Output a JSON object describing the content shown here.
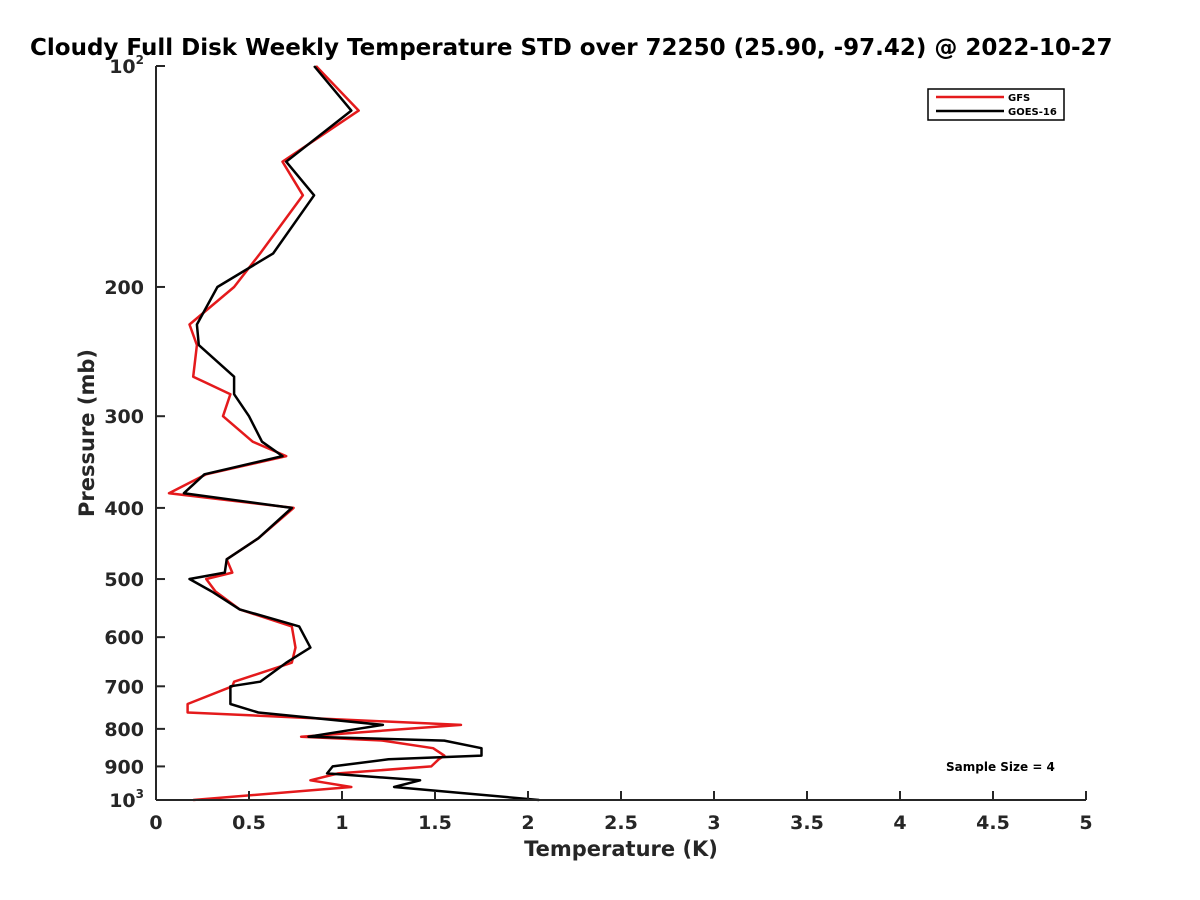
{
  "chart_data": {
    "type": "line",
    "title": "Cloudy Full Disk Weekly Temperature STD over 72250 (25.90, -97.42) @ 2022-10-27",
    "xlabel": "Temperature (K)",
    "ylabel": "Pressure (mb)",
    "xlim": [
      0,
      5
    ],
    "ylim": [
      100,
      1000
    ],
    "yscale": "log",
    "y_reversed": true,
    "grid": false,
    "legend_position": "top-right",
    "x_ticks": [
      "0",
      "0.5",
      "1",
      "1.5",
      "2",
      "2.5",
      "3",
      "3.5",
      "4",
      "4.5",
      "5"
    ],
    "y_ticks": [
      {
        "value": 100,
        "base": "10",
        "exp": "2"
      },
      {
        "value": 200,
        "label": "200"
      },
      {
        "value": 300,
        "label": "300"
      },
      {
        "value": 400,
        "label": "400"
      },
      {
        "value": 500,
        "label": "500"
      },
      {
        "value": 600,
        "label": "600"
      },
      {
        "value": 700,
        "label": "700"
      },
      {
        "value": 800,
        "label": "800"
      },
      {
        "value": 900,
        "label": "900"
      },
      {
        "value": 1000,
        "base": "10",
        "exp": "3"
      }
    ],
    "annotation": "Sample Size = 4",
    "series": [
      {
        "name": "GFS",
        "color": "#e41a1c",
        "points": [
          [
            0.86,
            100
          ],
          [
            1.09,
            115
          ],
          [
            0.68,
            135
          ],
          [
            0.79,
            150
          ],
          [
            0.56,
            180
          ],
          [
            0.42,
            200
          ],
          [
            0.18,
            225
          ],
          [
            0.22,
            240
          ],
          [
            0.2,
            265
          ],
          [
            0.4,
            280
          ],
          [
            0.36,
            300
          ],
          [
            0.52,
            325
          ],
          [
            0.7,
            340
          ],
          [
            0.27,
            360
          ],
          [
            0.07,
            382
          ],
          [
            0.74,
            400
          ],
          [
            0.55,
            440
          ],
          [
            0.38,
            470
          ],
          [
            0.41,
            490
          ],
          [
            0.27,
            500
          ],
          [
            0.32,
            520
          ],
          [
            0.45,
            550
          ],
          [
            0.73,
            580
          ],
          [
            0.75,
            620
          ],
          [
            0.73,
            650
          ],
          [
            0.42,
            690
          ],
          [
            0.41,
            700
          ],
          [
            0.17,
            740
          ],
          [
            0.17,
            760
          ],
          [
            1.64,
            790
          ],
          [
            0.78,
            820
          ],
          [
            1.22,
            830
          ],
          [
            1.49,
            850
          ],
          [
            1.55,
            870
          ],
          [
            1.52,
            880
          ],
          [
            1.48,
            900
          ],
          [
            0.98,
            920
          ],
          [
            0.83,
            940
          ],
          [
            1.05,
            960
          ],
          [
            0.2,
            1000
          ]
        ]
      },
      {
        "name": "GOES-16",
        "color": "#000000",
        "points": [
          [
            0.85,
            100
          ],
          [
            1.05,
            115
          ],
          [
            0.7,
            135
          ],
          [
            0.85,
            150
          ],
          [
            0.63,
            180
          ],
          [
            0.33,
            200
          ],
          [
            0.22,
            225
          ],
          [
            0.23,
            240
          ],
          [
            0.42,
            265
          ],
          [
            0.42,
            280
          ],
          [
            0.5,
            300
          ],
          [
            0.57,
            325
          ],
          [
            0.68,
            340
          ],
          [
            0.26,
            360
          ],
          [
            0.15,
            382
          ],
          [
            0.73,
            400
          ],
          [
            0.55,
            440
          ],
          [
            0.38,
            470
          ],
          [
            0.37,
            490
          ],
          [
            0.18,
            500
          ],
          [
            0.3,
            520
          ],
          [
            0.45,
            550
          ],
          [
            0.77,
            580
          ],
          [
            0.83,
            620
          ],
          [
            0.7,
            650
          ],
          [
            0.56,
            690
          ],
          [
            0.4,
            700
          ],
          [
            0.4,
            740
          ],
          [
            0.55,
            760
          ],
          [
            1.22,
            790
          ],
          [
            0.82,
            820
          ],
          [
            1.55,
            830
          ],
          [
            1.75,
            850
          ],
          [
            1.75,
            870
          ],
          [
            1.25,
            880
          ],
          [
            0.95,
            900
          ],
          [
            0.92,
            920
          ],
          [
            1.42,
            940
          ],
          [
            1.28,
            960
          ],
          [
            2.06,
            1000
          ]
        ]
      }
    ]
  }
}
